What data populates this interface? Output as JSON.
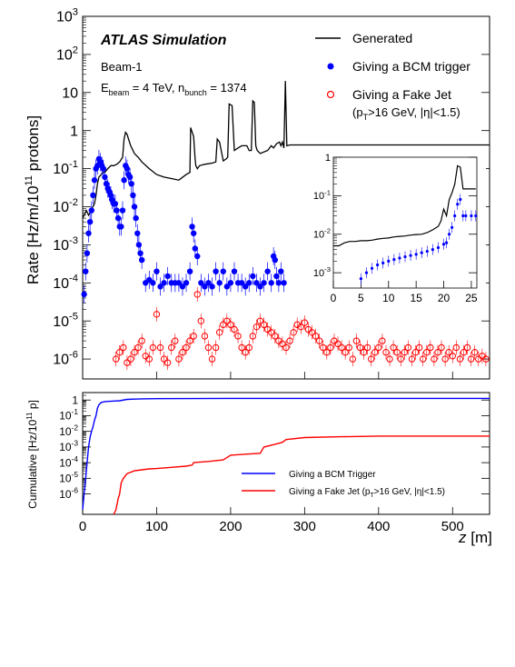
{
  "chart_data": [
    {
      "panel": "upper",
      "type": "line+scatter",
      "title": "ATLAS Simulation",
      "notes": [
        "Beam-1"
      ],
      "energy_label": {
        "main": "E",
        "sub1": "beam",
        "mid": " = 4 TeV, n",
        "sub2": "bunch",
        "tail": " = 1374"
      },
      "ylabel": {
        "main": "Rate [Hz/m/10",
        "sup": "11",
        "tail": " protons]"
      },
      "yscale": "log",
      "ylim": [
        3e-07,
        1000
      ],
      "xlim": [
        0,
        550
      ],
      "y_ticks": [
        {
          "value": 1e-06,
          "label": "10",
          "sup": "-6"
        },
        {
          "value": 1e-05,
          "label": "10",
          "sup": "-5"
        },
        {
          "value": 0.0001,
          "label": "10",
          "sup": "-4"
        },
        {
          "value": 0.001,
          "label": "10",
          "sup": "-3"
        },
        {
          "value": 0.01,
          "label": "10",
          "sup": "-2"
        },
        {
          "value": 0.1,
          "label": "10",
          "sup": "-1"
        },
        {
          "value": 1,
          "label": "1",
          "sup": ""
        },
        {
          "value": 10,
          "label": "10",
          "sup": ""
        },
        {
          "value": 100,
          "label": "10",
          "sup": "2"
        },
        {
          "value": 1000,
          "label": "10",
          "sup": "3"
        }
      ],
      "legend": {
        "position": "top-right",
        "entries": [
          {
            "label": "Generated",
            "label2": "",
            "marker": "line",
            "color": "#000000"
          },
          {
            "label": "Giving a BCM trigger",
            "label2": "",
            "marker": "filled-circle",
            "color": "#0000ff"
          },
          {
            "label": "Giving a Fake Jet",
            "label2": "(p_T>16 GeV, |η|<1.5)",
            "marker": "open-circle",
            "color": "#ff0000"
          }
        ]
      },
      "series": [
        {
          "name": "Generated",
          "color": "#000000",
          "x": [
            0,
            5,
            8,
            10,
            12,
            14,
            16,
            18,
            20,
            22,
            25,
            28,
            30,
            34,
            38,
            42,
            46,
            50,
            54,
            56,
            58,
            60,
            62,
            65,
            70,
            75,
            80,
            90,
            100,
            110,
            120,
            130,
            140,
            145,
            146,
            148,
            150,
            152,
            153,
            155,
            158,
            165,
            175,
            180,
            182,
            185,
            190,
            194,
            196,
            198,
            202,
            205,
            210,
            215,
            222,
            225,
            228,
            230,
            232,
            234,
            236,
            240,
            250,
            255,
            258,
            262,
            266,
            268,
            270,
            272,
            274,
            276,
            280,
            300,
            350,
            400,
            450,
            500,
            550
          ],
          "y": [
            0.005,
            0.008,
            0.006,
            0.007,
            0.009,
            0.01,
            0.012,
            0.02,
            0.04,
            0.06,
            0.07,
            0.08,
            0.08,
            0.1,
            0.12,
            0.12,
            0.13,
            0.15,
            0.2,
            0.6,
            0.9,
            0.8,
            0.6,
            0.4,
            0.25,
            0.2,
            0.15,
            0.1,
            0.07,
            0.06,
            0.055,
            0.05,
            0.07,
            0.08,
            1.2,
            0.9,
            0.7,
            0.18,
            0.12,
            0.1,
            0.12,
            0.13,
            0.14,
            0.15,
            0.6,
            0.5,
            0.16,
            0.18,
            0.2,
            5,
            4.5,
            0.3,
            0.35,
            0.4,
            0.4,
            0.3,
            0.3,
            6,
            5.5,
            0.4,
            0.3,
            0.25,
            0.3,
            0.4,
            0.35,
            0.45,
            0.5,
            0.4,
            0.5,
            0.35,
            20,
            0.4,
            0.42,
            0.42,
            0.42,
            0.42,
            0.42,
            0.42,
            0.42
          ]
        },
        {
          "name": "Giving a BCM trigger",
          "color": "#0000ff",
          "x": [
            2,
            4,
            6,
            8,
            10,
            12,
            14,
            16,
            18,
            20,
            22,
            24,
            26,
            28,
            30,
            32,
            34,
            36,
            38,
            40,
            42,
            44,
            46,
            48,
            50,
            52,
            54,
            56,
            58,
            60,
            62,
            64,
            66,
            68,
            70,
            72,
            74,
            76,
            78,
            80,
            85,
            90,
            95,
            100,
            105,
            110,
            115,
            120,
            125,
            130,
            135,
            140,
            145,
            148,
            150,
            152,
            155,
            160,
            165,
            170,
            175,
            180,
            185,
            190,
            195,
            200,
            205,
            210,
            215,
            220,
            225,
            230,
            235,
            240,
            245,
            250,
            255,
            258,
            260,
            262,
            265,
            268,
            272
          ],
          "y": [
            5e-05,
            0.0002,
            0.0006,
            0.002,
            0.004,
            0.008,
            0.02,
            0.05,
            0.1,
            0.12,
            0.18,
            0.15,
            0.12,
            0.1,
            0.06,
            0.04,
            0.03,
            0.025,
            0.02,
            0.015,
            0.012,
            0.012,
            0.008,
            0.005,
            0.003,
            0.003,
            0.008,
            0.05,
            0.12,
            0.1,
            0.07,
            0.06,
            0.04,
            0.02,
            0.01,
            0.005,
            0.002,
            0.001,
            0.0006,
            0.0004,
            0.0001,
            0.00012,
            0.0001,
            0.0002,
            8e-05,
            0.0001,
            0.00015,
            0.0001,
            0.0001,
            0.0001,
            8e-05,
            0.0001,
            0.0002,
            0.003,
            0.002,
            0.0008,
            0.0005,
            0.0001,
            8e-05,
            0.0001,
            8e-05,
            0.0002,
            0.0001,
            0.0002,
            8e-05,
            0.0001,
            0.0002,
            0.0001,
            0.0001,
            8e-05,
            0.0001,
            0.00015,
            0.0001,
            8e-05,
            0.0001,
            0.0002,
            0.0001,
            0.0005,
            0.0004,
            0.00015,
            0.0001,
            0.0002,
            0.0001
          ]
        },
        {
          "name": "Giving a Fake Jet",
          "color": "#ff0000",
          "x": [
            45,
            50,
            55,
            60,
            65,
            70,
            75,
            80,
            85,
            90,
            95,
            100,
            105,
            110,
            115,
            120,
            125,
            130,
            135,
            140,
            145,
            150,
            155,
            160,
            165,
            170,
            175,
            180,
            185,
            190,
            195,
            200,
            205,
            210,
            215,
            220,
            225,
            230,
            235,
            240,
            245,
            250,
            255,
            260,
            265,
            270,
            275,
            280,
            285,
            290,
            295,
            300,
            305,
            310,
            315,
            320,
            325,
            330,
            335,
            340,
            345,
            350,
            355,
            360,
            365,
            370,
            375,
            380,
            385,
            390,
            395,
            400,
            405,
            410,
            415,
            420,
            425,
            430,
            435,
            440,
            445,
            450,
            455,
            460,
            465,
            470,
            475,
            480,
            485,
            490,
            495,
            500,
            505,
            510,
            515,
            520,
            525,
            530,
            535,
            540,
            545
          ],
          "y": [
            1e-06,
            1.5e-06,
            2e-06,
            8e-07,
            1e-06,
            1.5e-06,
            2e-06,
            3e-06,
            1.2e-06,
            1e-06,
            2e-06,
            1.5e-05,
            2e-06,
            1e-06,
            8e-07,
            2e-06,
            3e-06,
            1e-06,
            1.5e-06,
            2e-06,
            3e-06,
            4e-06,
            5e-05,
            1e-05,
            4e-06,
            2e-06,
            1e-06,
            2e-06,
            5e-06,
            8e-06,
            1e-05,
            8e-06,
            6e-06,
            4e-06,
            2e-06,
            1.5e-06,
            2e-06,
            4e-06,
            7e-06,
            1e-05,
            8e-06,
            6e-06,
            5e-06,
            4e-06,
            3e-06,
            2.5e-06,
            2e-06,
            3e-06,
            5e-06,
            8e-06,
            7e-06,
            9e-06,
            6e-06,
            5e-06,
            4e-06,
            3e-06,
            2e-06,
            1.5e-06,
            2e-06,
            3e-06,
            2.5e-06,
            2e-06,
            1.5e-06,
            2e-06,
            1e-06,
            3e-06,
            2e-06,
            1.5e-06,
            2e-06,
            1e-06,
            1.5e-06,
            2e-06,
            3e-06,
            1.5e-06,
            1e-06,
            2e-06,
            1.5e-06,
            1e-06,
            1.5e-06,
            2e-06,
            1e-06,
            1.5e-06,
            2e-06,
            1e-06,
            1.5e-06,
            2e-06,
            1e-06,
            1.5e-06,
            2e-06,
            1e-06,
            1.5e-06,
            1.2e-06,
            2e-06,
            1e-06,
            1.5e-06,
            2e-06,
            1e-06,
            1.5e-06,
            1e-06,
            1.2e-06,
            1e-06
          ]
        }
      ]
    },
    {
      "panel": "inset",
      "type": "line+scatter",
      "yscale": "log",
      "xlim": [
        0,
        26
      ],
      "ylim": [
        0.0004,
        1
      ],
      "x_ticks": [
        0,
        5,
        10,
        15,
        20,
        25
      ],
      "y_ticks": [
        {
          "value": 0.001,
          "label": "10",
          "sup": "-3"
        },
        {
          "value": 0.01,
          "label": "10",
          "sup": "-2"
        },
        {
          "value": 0.1,
          "label": "10",
          "sup": "-1"
        },
        {
          "value": 1,
          "label": "1",
          "sup": ""
        }
      ],
      "series": [
        {
          "name": "Generated",
          "color": "#000000",
          "x": [
            0,
            1,
            2,
            3,
            4,
            5,
            6,
            7,
            8,
            9,
            10,
            11,
            12,
            13,
            14,
            15,
            16,
            17,
            18,
            19,
            19.5,
            20,
            20.5,
            21,
            21.5,
            22,
            22.5,
            23,
            23.5,
            24,
            25,
            25.8
          ],
          "y": [
            0.005,
            0.005,
            0.006,
            0.0065,
            0.0065,
            0.0068,
            0.0068,
            0.007,
            0.0075,
            0.0078,
            0.008,
            0.0085,
            0.0088,
            0.009,
            0.0095,
            0.0098,
            0.01,
            0.011,
            0.013,
            0.016,
            0.022,
            0.045,
            0.03,
            0.08,
            0.12,
            0.2,
            0.6,
            0.55,
            0.15,
            0.15,
            0.15,
            0.15
          ]
        },
        {
          "name": "Giving a BCM trigger",
          "color": "#0000ff",
          "x": [
            5,
            6,
            7,
            8,
            9,
            10,
            11,
            12,
            13,
            14,
            15,
            16,
            17,
            18,
            19,
            20,
            20.5,
            21,
            21.5,
            22,
            22.5,
            23,
            23.5,
            24,
            25,
            25.8
          ],
          "y": [
            0.0007,
            0.001,
            0.0013,
            0.0016,
            0.0018,
            0.002,
            0.0022,
            0.0024,
            0.0026,
            0.0028,
            0.003,
            0.0033,
            0.0036,
            0.004,
            0.0045,
            0.0055,
            0.006,
            0.01,
            0.015,
            0.03,
            0.06,
            0.08,
            0.03,
            0.03,
            0.03,
            0.03
          ]
        }
      ]
    },
    {
      "panel": "lower",
      "type": "line",
      "ylabel": {
        "main": "Cumulative [Hz/10",
        "sup": "11",
        "tail": " p]"
      },
      "xlabel": "z [m]",
      "yscale": "log",
      "xlim": [
        0,
        550
      ],
      "ylim": [
        5e-08,
        3
      ],
      "x_ticks": [
        0,
        100,
        200,
        300,
        400,
        500
      ],
      "y_ticks": [
        {
          "value": 1e-06,
          "label": "10",
          "sup": "-6"
        },
        {
          "value": 1e-05,
          "label": "10",
          "sup": "-5"
        },
        {
          "value": 0.0001,
          "label": "10",
          "sup": "-4"
        },
        {
          "value": 0.001,
          "label": "10",
          "sup": "-3"
        },
        {
          "value": 0.01,
          "label": "10",
          "sup": "-2"
        },
        {
          "value": 0.1,
          "label": "10",
          "sup": "-1"
        },
        {
          "value": 1,
          "label": "1",
          "sup": ""
        }
      ],
      "legend": {
        "position": "bottom-right",
        "entries": [
          {
            "label": "Giving a BCM Trigger",
            "label2": "",
            "color": "#0000ff"
          },
          {
            "label": "Giving a Fake Jet (p_T>16 GeV, |η|<1.5)",
            "label2": "",
            "color": "#ff0000"
          }
        ]
      },
      "series": [
        {
          "name": "Giving a BCM Trigger",
          "color": "#0000ff",
          "x": [
            0,
            2,
            4,
            6,
            8,
            10,
            12,
            14,
            16,
            18,
            20,
            22,
            25,
            30,
            40,
            50,
            60,
            70,
            80,
            100,
            150,
            200,
            275,
            300,
            400,
            500,
            550
          ],
          "y": [
            1e-07,
            1e-06,
            1e-05,
            0.0001,
            0.001,
            0.004,
            0.01,
            0.02,
            0.05,
            0.1,
            0.3,
            0.5,
            0.7,
            0.8,
            0.85,
            0.9,
            1.1,
            1.15,
            1.2,
            1.22,
            1.25,
            1.27,
            1.28,
            1.28,
            1.28,
            1.28,
            1.28
          ]
        },
        {
          "name": "Giving a Fake Jet (p_T>16 GeV, |η|<1.5)",
          "color": "#ff0000",
          "x": [
            42,
            45,
            48,
            50,
            52,
            55,
            60,
            70,
            80,
            90,
            100,
            120,
            140,
            148,
            150,
            170,
            190,
            200,
            220,
            240,
            245,
            260,
            270,
            275,
            300,
            350,
            400,
            450,
            500,
            550
          ],
          "y": [
            5e-08,
            1e-07,
            5e-07,
            1e-06,
            5e-06,
            1e-05,
            2e-05,
            3e-05,
            3.5e-05,
            4e-05,
            4.2e-05,
            5e-05,
            6e-05,
            7e-05,
            0.0001,
            0.00012,
            0.00015,
            0.0003,
            0.00035,
            0.0004,
            0.001,
            0.0015,
            0.002,
            0.003,
            0.004,
            0.0045,
            0.005,
            0.005,
            0.005,
            0.005
          ]
        }
      ]
    }
  ]
}
